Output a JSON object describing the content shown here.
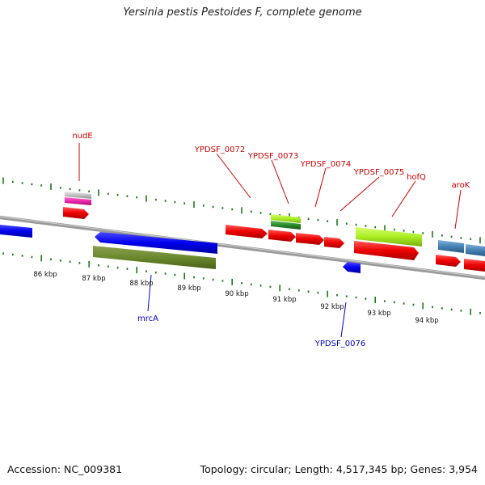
{
  "title": "Yersinia pestis Pestoides F, complete genome",
  "footer": {
    "accession": "Accession: NC_009381",
    "summary": "Topology: circular; Length: 4,517,345 bp; Genes: 3,954"
  },
  "colors": {
    "backbone": "#8a8a8a",
    "tick": "#1a7a1a",
    "label_red": "#cc0000",
    "label_blue": "#0000cc",
    "text": "#111111"
  },
  "scale_labels": [
    "86 kbp",
    "87 kbp",
    "88 kbp",
    "89 kbp",
    "90 kbp",
    "91 kbp",
    "92 kbp",
    "93 kbp",
    "94 kbp"
  ],
  "gene_labels_forward": [
    "nudE",
    "YPDSF_0072",
    "YPDSF_0073",
    "YPDSF_0074",
    "YPDSF_0075",
    "hofQ",
    "aroK"
  ],
  "gene_labels_reverse": [
    "mrcA",
    "YPDSF_0076"
  ]
}
